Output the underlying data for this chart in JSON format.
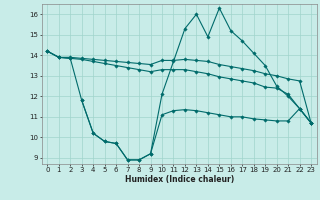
{
  "xlabel": "Humidex (Indice chaleur)",
  "background_color": "#c8ece8",
  "grid_color": "#a0d4cc",
  "line_color": "#006b6b",
  "xlim": [
    -0.5,
    23.5
  ],
  "ylim": [
    8.7,
    16.5
  ],
  "yticks": [
    9,
    10,
    11,
    12,
    13,
    14,
    15,
    16
  ],
  "xticks": [
    0,
    1,
    2,
    3,
    4,
    5,
    6,
    7,
    8,
    9,
    10,
    11,
    12,
    13,
    14,
    15,
    16,
    17,
    18,
    19,
    20,
    21,
    22,
    23
  ],
  "line1_x": [
    0,
    1,
    2,
    3,
    4,
    5,
    6,
    7,
    8,
    9,
    10,
    11,
    12,
    13,
    14,
    15,
    16,
    17,
    18,
    19,
    20,
    21,
    22,
    23
  ],
  "line1_y": [
    14.2,
    13.9,
    13.9,
    13.85,
    13.8,
    13.75,
    13.7,
    13.65,
    13.6,
    13.55,
    13.75,
    13.75,
    13.8,
    13.75,
    13.7,
    13.55,
    13.45,
    13.35,
    13.25,
    13.1,
    13.0,
    12.85,
    12.75,
    10.7
  ],
  "line2_x": [
    0,
    1,
    2,
    3,
    4,
    5,
    6,
    7,
    8,
    9,
    10,
    11,
    12,
    13,
    14,
    15,
    16,
    17,
    18,
    19,
    20,
    21,
    22,
    23
  ],
  "line2_y": [
    14.2,
    13.9,
    13.85,
    13.8,
    13.7,
    13.6,
    13.5,
    13.4,
    13.3,
    13.2,
    13.3,
    13.3,
    13.3,
    13.2,
    13.1,
    12.95,
    12.85,
    12.75,
    12.65,
    12.45,
    12.4,
    12.1,
    11.4,
    10.7
  ],
  "line3_x": [
    0,
    1,
    2,
    3,
    4,
    5,
    6,
    7,
    8,
    9,
    10,
    11,
    12,
    13,
    14,
    15,
    16,
    17,
    18,
    19,
    20,
    21,
    22,
    23
  ],
  "line3_y": [
    14.2,
    13.9,
    13.85,
    11.8,
    10.2,
    9.8,
    9.7,
    8.9,
    8.9,
    9.2,
    12.1,
    13.7,
    15.3,
    16.0,
    14.9,
    16.3,
    15.2,
    14.7,
    14.1,
    13.5,
    12.5,
    12.0,
    11.4,
    10.7
  ],
  "line4_x": [
    3,
    4,
    5,
    6,
    7,
    8,
    9,
    10,
    11,
    12,
    13,
    14,
    15,
    16,
    17,
    18,
    19,
    20,
    21,
    22,
    23
  ],
  "line4_y": [
    11.8,
    10.2,
    9.8,
    9.7,
    8.9,
    8.9,
    9.2,
    11.1,
    11.3,
    11.35,
    11.3,
    11.2,
    11.1,
    11.0,
    11.0,
    10.9,
    10.85,
    10.8,
    10.8,
    11.4,
    10.7
  ]
}
